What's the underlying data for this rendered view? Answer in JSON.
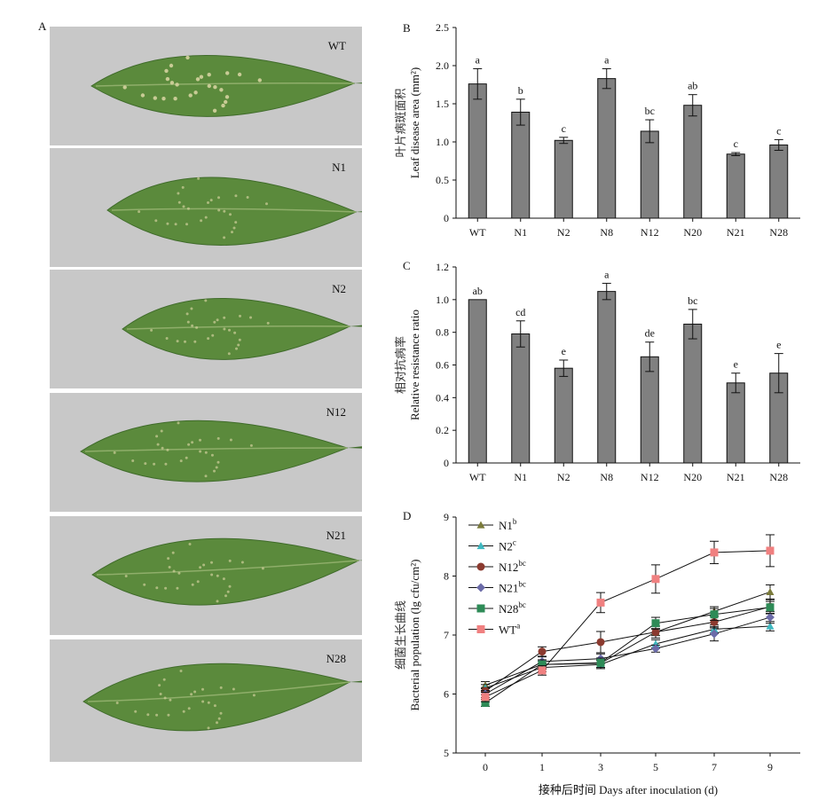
{
  "panel_a": {
    "letter": "A",
    "leaves": [
      {
        "label": "WT"
      },
      {
        "label": "N1"
      },
      {
        "label": "N2"
      },
      {
        "label": "N12"
      },
      {
        "label": "N21"
      },
      {
        "label": "N28"
      }
    ],
    "colors": {
      "leaf": "#5b8a3c",
      "leaf_dark": "#3f6b2a",
      "background": "#c8c8c8",
      "lesion": "#cfcf9a"
    }
  },
  "colors": {
    "bar": "#808080",
    "wt_line": "#f08080"
  },
  "chart_data": [
    {
      "panel": "B",
      "type": "bar",
      "ylabel_cn": "叶片病斑面积",
      "ylabel_en": "Leaf disease area (mm²)",
      "categories": [
        "WT",
        "N1",
        "N2",
        "N8",
        "N12",
        "N20",
        "N21",
        "N28"
      ],
      "values": [
        1.76,
        1.39,
        1.02,
        1.83,
        1.14,
        1.48,
        0.84,
        0.96
      ],
      "errors": [
        0.2,
        0.17,
        0.04,
        0.13,
        0.15,
        0.14,
        0.02,
        0.07
      ],
      "letters": [
        "a",
        "b",
        "c",
        "a",
        "bc",
        "ab",
        "c",
        "c"
      ],
      "ylim": [
        0,
        2.5
      ],
      "yticks": [
        "0",
        "0.5",
        "1.0",
        "1.5",
        "2.0",
        "2.5"
      ],
      "ytick_values": [
        0,
        0.5,
        1.0,
        1.5,
        2.0,
        2.5
      ]
    },
    {
      "panel": "C",
      "type": "bar",
      "ylabel_cn": "相对抗病率",
      "ylabel_en": "Relative resistance ratio",
      "categories": [
        "WT",
        "N1",
        "N2",
        "N8",
        "N12",
        "N20",
        "N21",
        "N28"
      ],
      "values": [
        1.0,
        0.79,
        0.58,
        1.05,
        0.65,
        0.85,
        0.49,
        0.55
      ],
      "errors": [
        0.0,
        0.08,
        0.05,
        0.05,
        0.09,
        0.09,
        0.06,
        0.12
      ],
      "letters": [
        "ab",
        "cd",
        "e",
        "a",
        "de",
        "bc",
        "e",
        "e"
      ],
      "ylim": [
        0,
        1.2
      ],
      "yticks": [
        "0",
        "0.2",
        "0.4",
        "0.6",
        "0.8",
        "1.0",
        "1.2"
      ],
      "ytick_values": [
        0,
        0.2,
        0.4,
        0.6,
        0.8,
        1.0,
        1.2
      ]
    },
    {
      "panel": "D",
      "type": "line",
      "ylabel_cn": "细菌生长曲线",
      "ylabel_en": "Bacterial population (lg cfu/cm²)",
      "xlabel": "接种后时间 Days after inoculation (d)",
      "x": [
        0,
        1,
        3,
        5,
        7,
        9
      ],
      "xticks": [
        "0",
        "1",
        "3",
        "5",
        "7",
        "9"
      ],
      "ylim": [
        5,
        9
      ],
      "yticks": [
        "5",
        "6",
        "7",
        "8",
        "9"
      ],
      "ytick_values": [
        5,
        6,
        7,
        8,
        9
      ],
      "series": [
        {
          "name": "N1",
          "sup": "b",
          "marker": "triangle",
          "color": "#7a7a3a",
          "values": [
            6.15,
            6.5,
            6.52,
            7.05,
            7.4,
            7.73
          ],
          "errors": [
            0.06,
            0.06,
            0.07,
            0.06,
            0.08,
            0.12
          ]
        },
        {
          "name": "N2",
          "sup": "c",
          "marker": "triangle",
          "color": "#3fb8c0",
          "values": [
            6.1,
            6.45,
            6.5,
            6.85,
            7.1,
            7.15
          ],
          "errors": [
            0.06,
            0.07,
            0.07,
            0.07,
            0.07,
            0.08
          ]
        },
        {
          "name": "N12",
          "sup": "bc",
          "marker": "circle",
          "color": "#8b3a2f",
          "values": [
            6.05,
            6.72,
            6.88,
            7.05,
            7.22,
            7.48
          ],
          "errors": [
            0.06,
            0.08,
            0.18,
            0.1,
            0.1,
            0.12
          ]
        },
        {
          "name": "N21",
          "sup": "bc",
          "marker": "diamond",
          "color": "#6b6ba8",
          "values": [
            6.0,
            6.55,
            6.6,
            6.77,
            7.02,
            7.3
          ],
          "errors": [
            0.06,
            0.08,
            0.08,
            0.06,
            0.12,
            0.1
          ]
        },
        {
          "name": "N28",
          "sup": "bc",
          "marker": "square",
          "color": "#2e8b57",
          "values": [
            5.85,
            6.5,
            6.53,
            7.2,
            7.35,
            7.47
          ],
          "errors": [
            0.06,
            0.08,
            0.08,
            0.1,
            0.1,
            0.1
          ]
        },
        {
          "name": "WT",
          "sup": "a",
          "marker": "square",
          "color": "#f08080",
          "values": [
            5.95,
            6.4,
            7.55,
            7.95,
            8.4,
            8.43
          ],
          "errors": [
            0.08,
            0.08,
            0.17,
            0.24,
            0.19,
            0.27
          ]
        }
      ]
    }
  ]
}
